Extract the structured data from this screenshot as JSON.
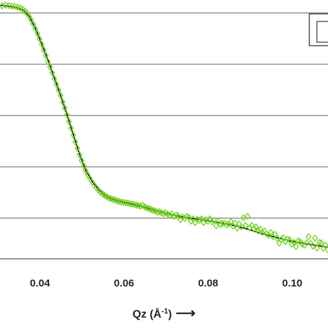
{
  "chart_data": {
    "type": "scatter",
    "title": "",
    "xlabel": {
      "text": "Qz (Å",
      "superscript": "-1",
      "suffix": ")",
      "arrow": "⟶"
    },
    "ylabel": "",
    "xlim": [
      0.0305,
      0.1085
    ],
    "ylim": [
      0,
      1.1
    ],
    "x_ticks": [
      0.04,
      0.06,
      0.08,
      0.1
    ],
    "x_tick_labels": [
      "0.04",
      "0.06",
      "0.08",
      "0.10"
    ],
    "y_gridlines": [
      0.173,
      0.391,
      0.609,
      0.827,
      1.045
    ],
    "y_tick_labels_visible": false,
    "grid": "horizontal",
    "legend": "top-right (cropped)",
    "series": [
      {
        "style": "markers",
        "marker": "open-diamond",
        "color": "#6fd21e",
        "points": [
          [
            0.031,
            1.075
          ],
          [
            0.0318,
            1.078
          ],
          [
            0.0326,
            1.076
          ],
          [
            0.0333,
            1.074
          ],
          [
            0.034,
            1.072
          ],
          [
            0.0347,
            1.07
          ],
          [
            0.0353,
            1.066
          ],
          [
            0.0359,
            1.06
          ],
          [
            0.0364,
            1.053
          ],
          [
            0.0369,
            1.044
          ],
          [
            0.0374,
            1.031
          ],
          [
            0.0379,
            1.016
          ],
          [
            0.0384,
            0.998
          ],
          [
            0.0389,
            0.978
          ],
          [
            0.0394,
            0.957
          ],
          [
            0.0399,
            0.935
          ],
          [
            0.0404,
            0.912
          ],
          [
            0.0409,
            0.888
          ],
          [
            0.0414,
            0.864
          ],
          [
            0.0419,
            0.838
          ],
          [
            0.0424,
            0.815
          ],
          [
            0.0429,
            0.791
          ],
          [
            0.0434,
            0.766
          ],
          [
            0.0439,
            0.742
          ],
          [
            0.0444,
            0.718
          ],
          [
            0.0449,
            0.694
          ],
          [
            0.0454,
            0.667
          ],
          [
            0.0459,
            0.641
          ],
          [
            0.0464,
            0.612
          ],
          [
            0.0469,
            0.584
          ],
          [
            0.0474,
            0.555
          ],
          [
            0.0479,
            0.526
          ],
          [
            0.0484,
            0.497
          ],
          [
            0.0489,
            0.47
          ],
          [
            0.0494,
            0.442
          ],
          [
            0.0499,
            0.418
          ],
          [
            0.0504,
            0.395
          ],
          [
            0.0509,
            0.375
          ],
          [
            0.0514,
            0.356
          ],
          [
            0.0519,
            0.341
          ],
          [
            0.0524,
            0.327
          ],
          [
            0.0529,
            0.314
          ],
          [
            0.0534,
            0.302
          ],
          [
            0.0539,
            0.292
          ],
          [
            0.0544,
            0.283
          ],
          [
            0.0549,
            0.276
          ],
          [
            0.0554,
            0.27
          ],
          [
            0.0559,
            0.264
          ],
          [
            0.0564,
            0.258
          ],
          [
            0.0569,
            0.256
          ],
          [
            0.0574,
            0.252
          ],
          [
            0.0579,
            0.25
          ],
          [
            0.0584,
            0.246
          ],
          [
            0.0589,
            0.243
          ],
          [
            0.0594,
            0.24
          ],
          [
            0.0599,
            0.24
          ],
          [
            0.0604,
            0.238
          ],
          [
            0.0609,
            0.237
          ],
          [
            0.0614,
            0.234
          ],
          [
            0.0619,
            0.233
          ],
          [
            0.0624,
            0.231
          ],
          [
            0.0629,
            0.228
          ],
          [
            0.0634,
            0.226
          ],
          [
            0.0639,
            0.224
          ],
          [
            0.0644,
            0.228
          ],
          [
            0.0649,
            0.221
          ],
          [
            0.0654,
            0.216
          ],
          [
            0.0659,
            0.214
          ],
          [
            0.0664,
            0.21
          ],
          [
            0.0669,
            0.206
          ],
          [
            0.0674,
            0.204
          ],
          [
            0.0679,
            0.198
          ],
          [
            0.0684,
            0.2
          ],
          [
            0.0689,
            0.196
          ],
          [
            0.0694,
            0.192
          ],
          [
            0.0699,
            0.196
          ],
          [
            0.0704,
            0.19
          ],
          [
            0.0709,
            0.185
          ],
          [
            0.0714,
            0.19
          ],
          [
            0.0719,
            0.18
          ],
          [
            0.0724,
            0.186
          ],
          [
            0.0729,
            0.182
          ],
          [
            0.0734,
            0.166
          ],
          [
            0.0739,
            0.178
          ],
          [
            0.0744,
            0.172
          ],
          [
            0.0749,
            0.18
          ],
          [
            0.0754,
            0.176
          ],
          [
            0.0759,
            0.16
          ],
          [
            0.0764,
            0.17
          ],
          [
            0.0769,
            0.154
          ],
          [
            0.0774,
            0.168
          ],
          [
            0.0779,
            0.164
          ],
          [
            0.0784,
            0.17
          ],
          [
            0.0789,
            0.154
          ],
          [
            0.0794,
            0.166
          ],
          [
            0.0799,
            0.16
          ],
          [
            0.0804,
            0.17
          ],
          [
            0.0809,
            0.157
          ],
          [
            0.0814,
            0.163
          ],
          [
            0.0819,
            0.14
          ],
          [
            0.0824,
            0.16
          ],
          [
            0.0829,
            0.146
          ],
          [
            0.0834,
            0.15
          ],
          [
            0.0839,
            0.152
          ],
          [
            0.0844,
            0.144
          ],
          [
            0.0849,
            0.148
          ],
          [
            0.0854,
            0.158
          ],
          [
            0.0859,
            0.14
          ],
          [
            0.0864,
            0.152
          ],
          [
            0.0869,
            0.13
          ],
          [
            0.0874,
            0.148
          ],
          [
            0.0879,
            0.136
          ],
          [
            0.0884,
            0.174
          ],
          [
            0.0889,
            0.142
          ],
          [
            0.0894,
            0.18
          ],
          [
            0.0899,
            0.132
          ],
          [
            0.0904,
            0.142
          ],
          [
            0.0909,
            0.128
          ],
          [
            0.0914,
            0.136
          ],
          [
            0.0919,
            0.118
          ],
          [
            0.0924,
            0.125
          ],
          [
            0.0929,
            0.112
          ],
          [
            0.0934,
            0.118
          ],
          [
            0.0939,
            0.106
          ],
          [
            0.0944,
            0.1
          ],
          [
            0.0949,
            0.112
          ],
          [
            0.0954,
            0.094
          ],
          [
            0.0959,
            0.104
          ],
          [
            0.0964,
            0.088
          ],
          [
            0.0969,
            0.066
          ],
          [
            0.0974,
            0.082
          ],
          [
            0.0979,
            0.09
          ],
          [
            0.0984,
            0.074
          ],
          [
            0.0989,
            0.084
          ],
          [
            0.0994,
            0.08
          ],
          [
            0.0999,
            0.062
          ],
          [
            0.1004,
            0.07
          ],
          [
            0.1009,
            0.052
          ],
          [
            0.1014,
            0.076
          ],
          [
            0.1019,
            0.072
          ],
          [
            0.1024,
            0.062
          ],
          [
            0.1029,
            0.058
          ],
          [
            0.1034,
            0.068
          ],
          [
            0.1039,
            0.094
          ],
          [
            0.1044,
            0.066
          ],
          [
            0.1049,
            0.054
          ],
          [
            0.1054,
            0.088
          ],
          [
            0.1059,
            0.046
          ],
          [
            0.1064,
            0.07
          ],
          [
            0.1069,
            0.068
          ],
          [
            0.1074,
            0.044
          ],
          [
            0.1079,
            0.058
          ],
          [
            0.1084,
            0.04
          ]
        ]
      },
      {
        "style": "line",
        "color": "#111111",
        "points": [
          [
            0.0305,
            1.078
          ],
          [
            0.034,
            1.07
          ],
          [
            0.036,
            1.058
          ],
          [
            0.0375,
            1.03
          ],
          [
            0.039,
            0.976
          ],
          [
            0.0405,
            0.91
          ],
          [
            0.042,
            0.84
          ],
          [
            0.0435,
            0.765
          ],
          [
            0.045,
            0.69
          ],
          [
            0.0465,
            0.61
          ],
          [
            0.048,
            0.524
          ],
          [
            0.0495,
            0.44
          ],
          [
            0.051,
            0.372
          ],
          [
            0.0525,
            0.326
          ],
          [
            0.054,
            0.292
          ],
          [
            0.0555,
            0.269
          ],
          [
            0.057,
            0.255
          ],
          [
            0.059,
            0.244
          ],
          [
            0.061,
            0.236
          ],
          [
            0.063,
            0.227
          ],
          [
            0.065,
            0.218
          ],
          [
            0.067,
            0.208
          ],
          [
            0.069,
            0.198
          ],
          [
            0.071,
            0.189
          ],
          [
            0.073,
            0.181
          ],
          [
            0.075,
            0.175
          ],
          [
            0.077,
            0.169
          ],
          [
            0.079,
            0.164
          ],
          [
            0.081,
            0.159
          ],
          [
            0.083,
            0.153
          ],
          [
            0.085,
            0.146
          ],
          [
            0.087,
            0.138
          ],
          [
            0.089,
            0.128
          ],
          [
            0.091,
            0.117
          ],
          [
            0.093,
            0.106
          ],
          [
            0.095,
            0.096
          ],
          [
            0.097,
            0.087
          ],
          [
            0.099,
            0.078
          ],
          [
            0.101,
            0.071
          ],
          [
            0.103,
            0.065
          ],
          [
            0.105,
            0.059
          ],
          [
            0.107,
            0.053
          ],
          [
            0.1085,
            0.049
          ]
        ]
      }
    ]
  }
}
